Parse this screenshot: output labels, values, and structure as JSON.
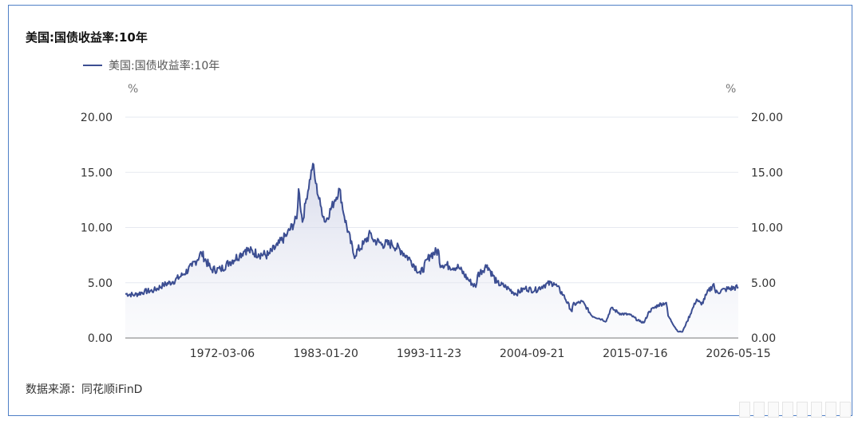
{
  "chart_data": {
    "type": "area",
    "title": "美国:国债收益率:10年",
    "legend": [
      "美国:国债收益率:10年"
    ],
    "y_unit_left": "%",
    "y_unit_right": "%",
    "ylim": [
      0,
      20
    ],
    "y_ticks": [
      "0.00",
      "5.00",
      "10.00",
      "15.00",
      "20.00"
    ],
    "x_ticks": [
      "1972-03-06",
      "1983-01-20",
      "1993-11-23",
      "2004-09-21",
      "2015-07-16",
      "2026-05-15"
    ],
    "xlim": [
      1962.0,
      2026.37
    ],
    "series": [
      {
        "name": "美国:国债收益率:10年",
        "color": "#3c4e92",
        "x": [
          1962.0,
          1963.0,
          1964.0,
          1965.0,
          1966.0,
          1967.0,
          1968.0,
          1969.0,
          1970.0,
          1971.0,
          1972.0,
          1973.0,
          1974.0,
          1974.6,
          1975.0,
          1976.0,
          1977.0,
          1978.0,
          1979.0,
          1980.0,
          1980.2,
          1980.6,
          1981.0,
          1981.7,
          1982.0,
          1982.5,
          1983.0,
          1984.0,
          1984.5,
          1985.0,
          1986.0,
          1987.0,
          1987.8,
          1988.0,
          1989.0,
          1990.0,
          1991.0,
          1992.0,
          1993.0,
          1994.0,
          1994.9,
          1995.0,
          1996.0,
          1997.0,
          1998.0,
          1998.8,
          1999.0,
          2000.0,
          2001.0,
          2002.0,
          2003.0,
          2004.0,
          2005.0,
          2006.0,
          2007.0,
          2008.0,
          2008.9,
          2009.0,
          2010.0,
          2011.0,
          2012.0,
          2012.5,
          2013.0,
          2014.0,
          2015.0,
          2016.0,
          2016.5,
          2017.0,
          2018.0,
          2018.8,
          2019.0,
          2020.0,
          2020.5,
          2021.0,
          2022.0,
          2022.5,
          2023.0,
          2023.8,
          2024.0,
          2025.0,
          2026.37
        ],
        "values": [
          4.0,
          3.9,
          4.2,
          4.3,
          4.8,
          5.1,
          5.7,
          6.5,
          7.7,
          6.2,
          6.2,
          6.9,
          7.5,
          8.0,
          7.9,
          7.6,
          7.5,
          8.4,
          9.4,
          10.8,
          13.5,
          10.5,
          12.6,
          15.8,
          14.0,
          12.0,
          10.5,
          12.5,
          13.5,
          11.0,
          7.5,
          8.5,
          9.5,
          8.9,
          8.5,
          8.5,
          7.9,
          7.0,
          5.8,
          7.5,
          7.9,
          6.8,
          6.5,
          6.4,
          5.3,
          4.6,
          5.7,
          6.6,
          5.0,
          4.6,
          4.0,
          4.5,
          4.3,
          4.8,
          5.0,
          3.9,
          2.4,
          3.0,
          3.3,
          2.0,
          1.7,
          1.5,
          2.7,
          2.2,
          2.1,
          1.5,
          1.4,
          2.4,
          3.0,
          3.2,
          2.0,
          0.6,
          0.55,
          1.5,
          3.5,
          3.0,
          3.9,
          4.9,
          4.1,
          4.4,
          4.6
        ]
      }
    ],
    "grid": true,
    "source": "数据来源：同花顺iFinD"
  }
}
